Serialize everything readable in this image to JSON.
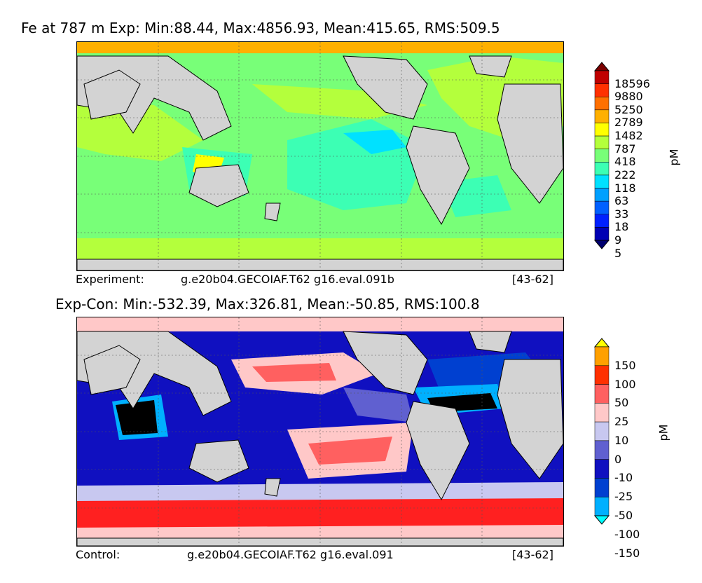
{
  "panels": [
    {
      "id": "experiment",
      "title": "Fe at 787 m Exp: Min:88.44, Max:4856.93, Mean:415.65, RMS:509.5",
      "footer_left": "Experiment:",
      "footer_mid": "g.e20b04.GECOIAF.T62 g16.eval.091b",
      "footer_right": "[43-62]",
      "unit": "pM",
      "colorbar": {
        "levels": [
          "18596",
          "9880",
          "5250",
          "2789",
          "1482",
          "787",
          "418",
          "222",
          "118",
          "63",
          "33",
          "18",
          "9",
          "5"
        ],
        "colors": [
          "#7a0000",
          "#c00000",
          "#ff3000",
          "#ff7000",
          "#ffb000",
          "#ffff00",
          "#b4ff3c",
          "#78ff78",
          "#3cffb4",
          "#00e1ff",
          "#00a0ff",
          "#0060ff",
          "#0020ff",
          "#0000b4",
          "#000070"
        ]
      },
      "regions": {
        "land": "#d3d3d3",
        "ocean_main": "#78ff78",
        "ocean_low": "#3cffb4",
        "ocean_lower": "#00e1ff",
        "high": "#b4ff3c",
        "arctic": "#ffb000",
        "yellow": "#ffff00"
      }
    },
    {
      "id": "difference",
      "title": "Exp-Con: Min:-532.39, Max:326.81, Mean:-50.85, RMS:100.8",
      "footer_left": "Control:",
      "footer_mid": "g.e20b04.GECOIAF.T62 g16.eval.091",
      "footer_right": "[43-62]",
      "unit": "pM",
      "colorbar": {
        "levels": [
          "150",
          "100",
          "50",
          "25",
          "10",
          "0",
          "-10",
          "-25",
          "-50",
          "-100",
          "-150"
        ],
        "colors": [
          "#ffff00",
          "#ffa000",
          "#ff3000",
          "#ff6060",
          "#ffc8c8",
          "#c8c8f0",
          "#6060d0",
          "#1010c0",
          "#0040d0",
          "#00b0ff",
          "#00ffff"
        ]
      },
      "regions": {
        "land": "#d3d3d3",
        "deep_blue": "#1010c0",
        "mid_blue": "#0040d0",
        "light_blue": "#6060d0",
        "pale_blue": "#c8c8f0",
        "cyan": "#00b0ff",
        "pink": "#ffc8c8",
        "salmon": "#ff6060",
        "red": "#ff2020",
        "black": "#000000"
      }
    }
  ]
}
